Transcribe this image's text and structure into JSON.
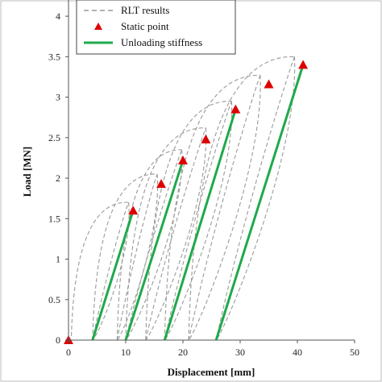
{
  "chart_data": {
    "type": "line",
    "xlabel": "Displacement [mm]",
    "ylabel": "Load [MN]",
    "xlim": [
      0,
      50
    ],
    "ylim": [
      0,
      4.2
    ],
    "x_ticks": [
      0,
      10,
      20,
      30,
      40,
      50
    ],
    "y_ticks": [
      0,
      0.5,
      1,
      1.5,
      2,
      2.5,
      3,
      3.5,
      4
    ],
    "grid": false,
    "legend_position": "top",
    "legend": [
      "RLT results",
      "Static point",
      "Unloading stiffness"
    ],
    "colors": {
      "rlt": "#9a9a9a",
      "static": "#dd0000",
      "unloading": "#1fa94a"
    },
    "static_points": [
      {
        "x": 0,
        "y": 0
      },
      {
        "x": 11.3,
        "y": 1.6
      },
      {
        "x": 16.2,
        "y": 1.93
      },
      {
        "x": 20.0,
        "y": 2.22
      },
      {
        "x": 24.0,
        "y": 2.48
      },
      {
        "x": 29.2,
        "y": 2.85
      },
      {
        "x": 35.0,
        "y": 3.16
      },
      {
        "x": 41.0,
        "y": 3.4
      }
    ],
    "unloading_lines": [
      {
        "x0": 4.2,
        "y0": 0,
        "x1": 11.3,
        "y1": 1.6
      },
      {
        "x0": 10.0,
        "y0": 0,
        "x1": 20.0,
        "y1": 2.22
      },
      {
        "x0": 16.8,
        "y0": 0,
        "x1": 29.2,
        "y1": 2.85
      },
      {
        "x0": 25.8,
        "y0": 0,
        "x1": 41.0,
        "y1": 3.4
      }
    ],
    "rlt_loops": [
      {
        "x0": 0.5,
        "y0": 0.05,
        "xp": 10.5,
        "yp": 1.7,
        "xe": 4.2
      },
      {
        "x0": 4.2,
        "y0": 0.0,
        "xp": 15.5,
        "yp": 2.05,
        "xe": 8.5
      },
      {
        "x0": 8.5,
        "y0": 0.0,
        "xp": 19.8,
        "yp": 2.35,
        "xe": 10.0
      },
      {
        "x0": 10.0,
        "y0": 0.0,
        "xp": 24.0,
        "yp": 2.62,
        "xe": 13.5
      },
      {
        "x0": 13.5,
        "y0": 0.0,
        "xp": 28.5,
        "yp": 2.95,
        "xe": 16.8
      },
      {
        "x0": 16.8,
        "y0": 0.0,
        "xp": 33.5,
        "yp": 3.27,
        "xe": 21.0
      },
      {
        "x0": 21.0,
        "y0": 0.0,
        "xp": 39.5,
        "yp": 3.5,
        "xe": 25.8
      }
    ]
  }
}
